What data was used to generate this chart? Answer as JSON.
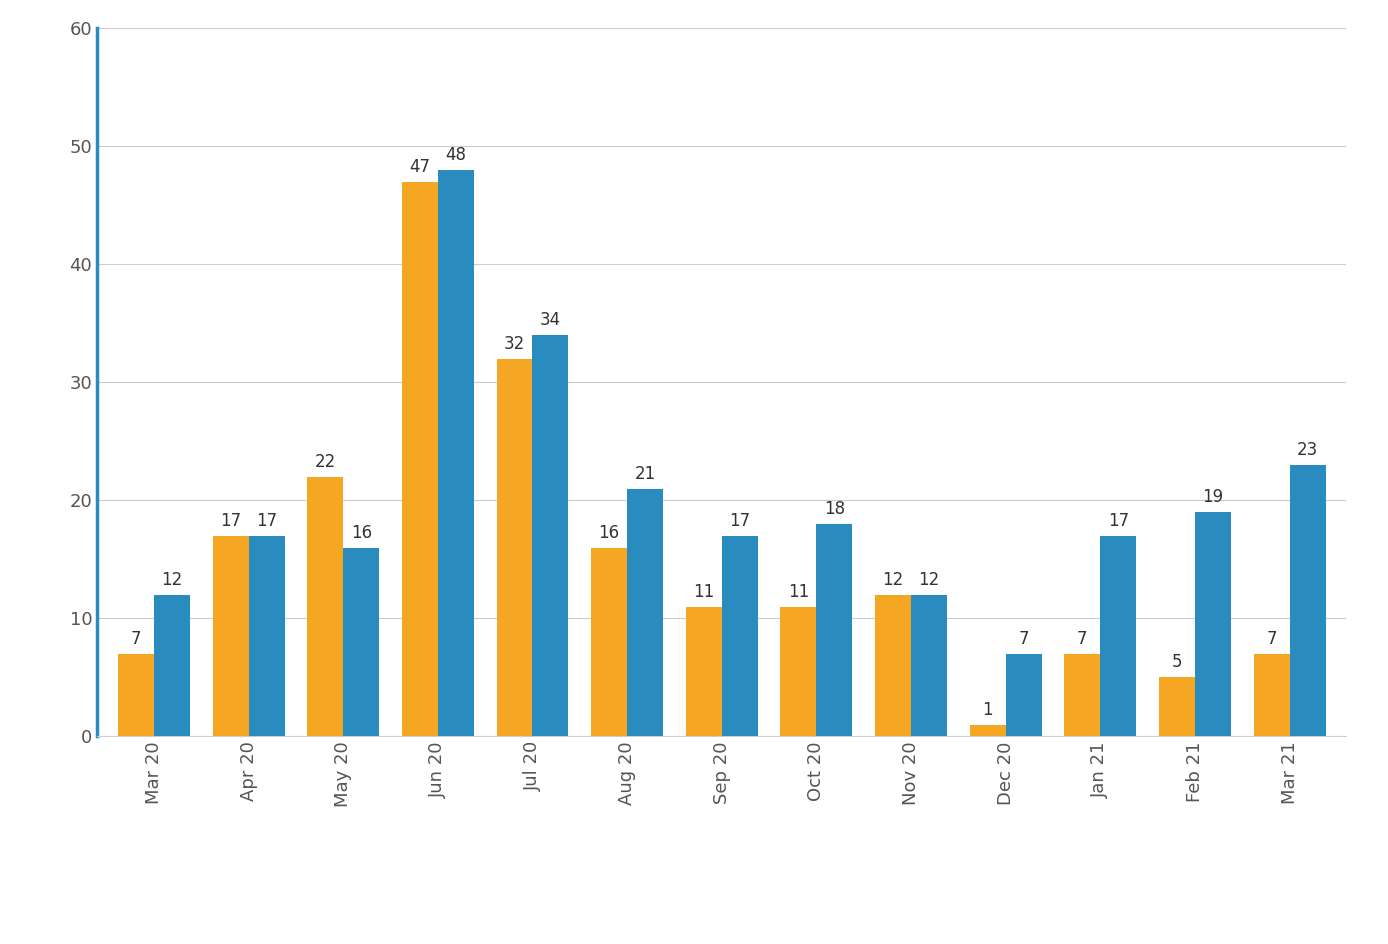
{
  "months": [
    "Mar 20",
    "Apr 20",
    "May 20",
    "Jun 20",
    "Jul 20",
    "Aug 20",
    "Sep 20",
    "Oct 20",
    "Nov 20",
    "Dec 20",
    "Jan 21",
    "Feb 21",
    "Mar 21"
  ],
  "ltc_values": [
    7,
    17,
    22,
    47,
    32,
    16,
    11,
    11,
    12,
    1,
    7,
    5,
    7
  ],
  "hospital_values": [
    12,
    17,
    16,
    48,
    34,
    21,
    17,
    18,
    12,
    7,
    17,
    19,
    23
  ],
  "ltc_color": "#F5A623",
  "hospital_color": "#2A8BBF",
  "background_color": "#FFFFFF",
  "ylim": [
    0,
    60
  ],
  "yticks": [
    0,
    10,
    20,
    30,
    40,
    50,
    60
  ],
  "bar_width": 0.38,
  "tick_fontsize": 13,
  "legend_fontsize": 14,
  "value_fontsize": 12,
  "left_spine_color": "#2A8BBF"
}
